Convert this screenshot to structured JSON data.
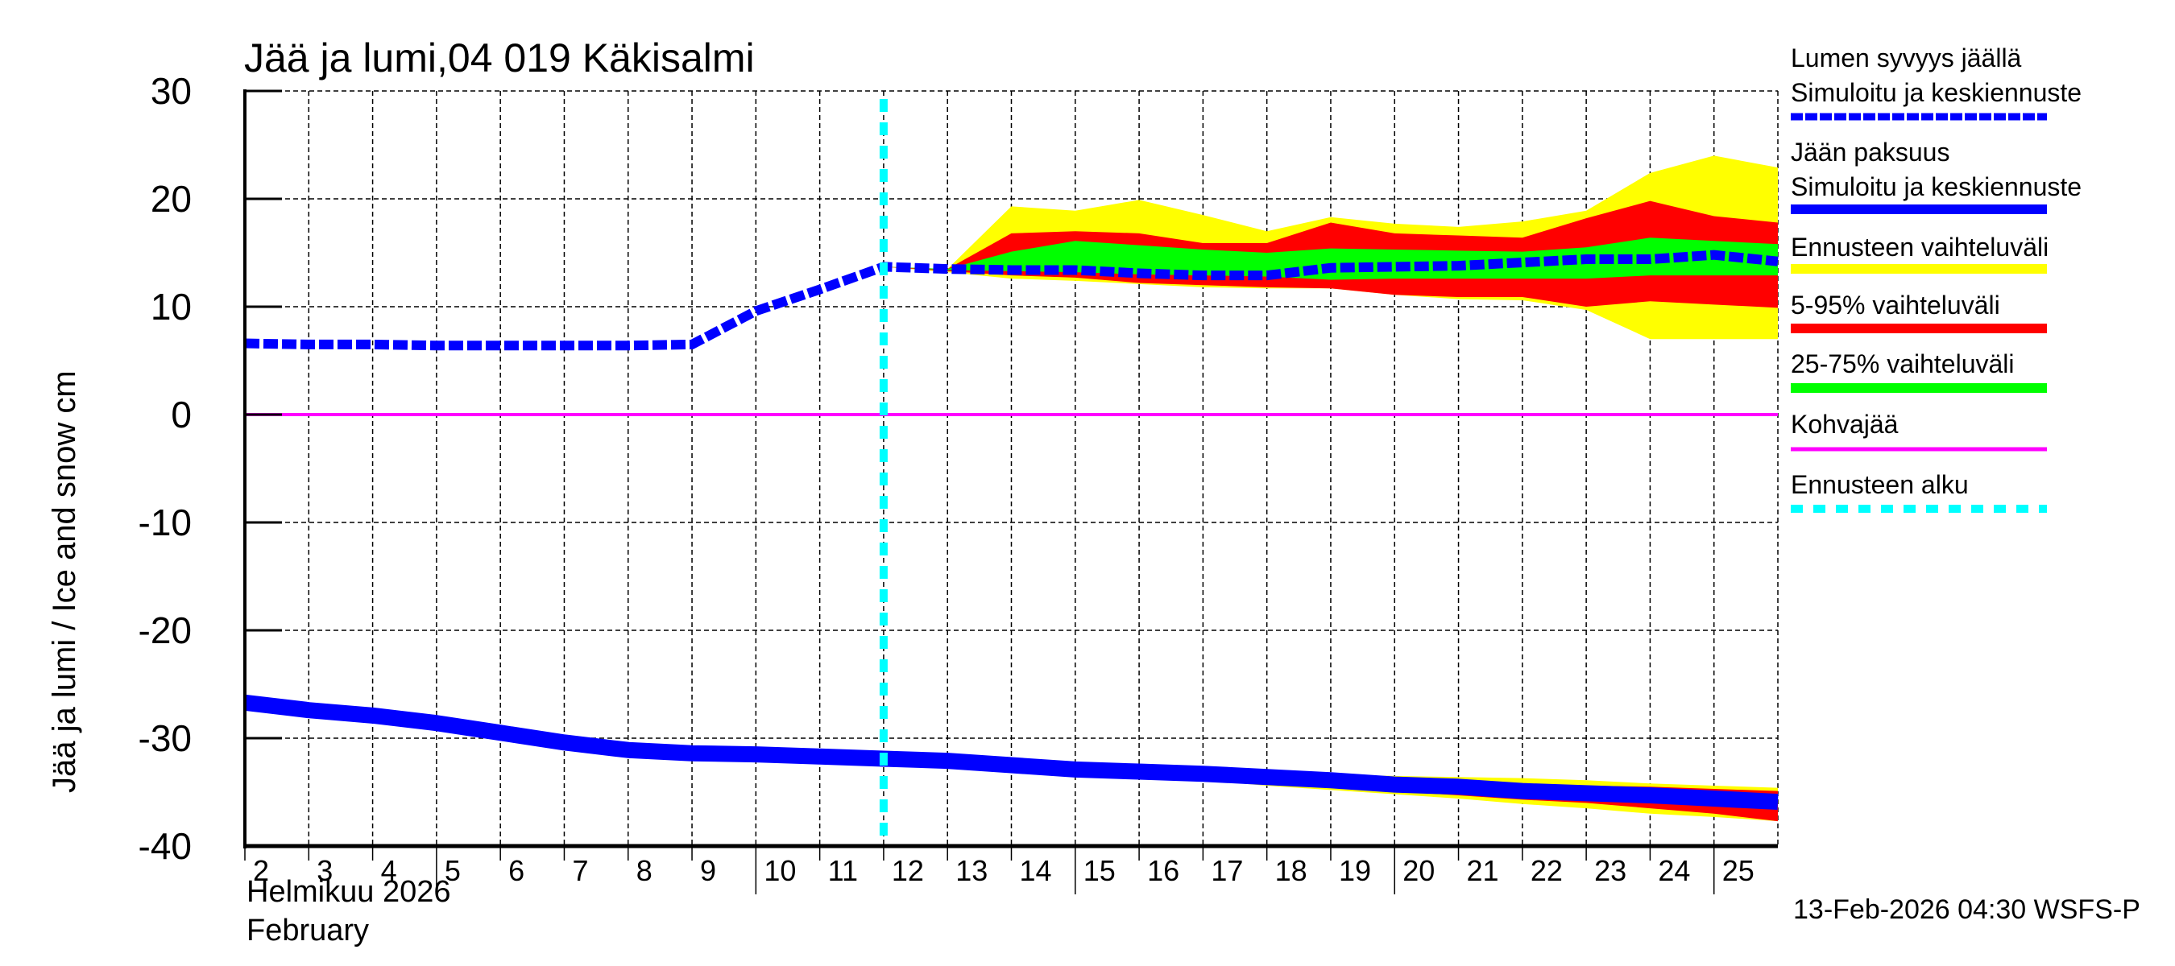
{
  "chart_data": {
    "type": "area",
    "title": "Jää ja lumi,04 019 Käkisalmi",
    "ylabel": "Jää ja lumi / Ice and snow    cm",
    "xlabel_line1": "Helmikuu  2026",
    "xlabel_line2": "February",
    "footer": "13-Feb-2026 04:30 WSFS-P",
    "ylim": [
      -40,
      30
    ],
    "yticks": [
      30,
      20,
      10,
      0,
      -10,
      -20,
      -30,
      -40
    ],
    "xlim": [
      2,
      26
    ],
    "xticks": [
      2,
      3,
      4,
      5,
      6,
      7,
      8,
      9,
      10,
      11,
      12,
      13,
      14,
      15,
      16,
      17,
      18,
      19,
      20,
      21,
      22,
      23,
      24,
      25
    ],
    "major_xticks": [
      5,
      10,
      15,
      20,
      25
    ],
    "grid": true,
    "legend_position": "right",
    "forecast_start_day": 12,
    "colors": {
      "snow": "#0000ff",
      "ice": "#0000ff",
      "range_full": "#ffff00",
      "range_5_95": "#ff0000",
      "range_25_75": "#00ff00",
      "slush": "#ff00ff",
      "forecast_start": "#00ffff"
    },
    "series": [
      {
        "name": "Lumen syvyys jäällä – Simuloitu ja keskiennuste",
        "style": "dashed",
        "x": [
          2,
          3,
          4,
          5,
          6,
          7,
          8,
          9,
          10,
          11,
          12,
          13,
          14,
          15,
          16,
          17,
          18,
          19,
          20,
          21,
          22,
          23,
          24,
          25,
          26
        ],
        "values": [
          6.6,
          6.5,
          6.5,
          6.4,
          6.4,
          6.4,
          6.4,
          6.5,
          9.6,
          11.6,
          13.7,
          13.5,
          13.4,
          13.4,
          13.1,
          12.9,
          12.9,
          13.6,
          13.7,
          13.8,
          14.1,
          14.4,
          14.4,
          14.8,
          14.2
        ]
      },
      {
        "name": "Jään paksuus – Simuloitu ja keskiennuste",
        "style": "solid",
        "x": [
          2,
          3,
          4,
          5,
          6,
          7,
          8,
          9,
          10,
          11,
          12,
          13,
          14,
          15,
          16,
          17,
          18,
          19,
          20,
          21,
          22,
          23,
          24,
          25,
          26
        ],
        "values": [
          -26.7,
          -27.4,
          -27.9,
          -28.6,
          -29.5,
          -30.4,
          -31.1,
          -31.4,
          -31.5,
          -31.7,
          -31.9,
          -32.1,
          -32.5,
          -32.9,
          -33.1,
          -33.3,
          -33.6,
          -33.9,
          -34.3,
          -34.5,
          -34.9,
          -35.1,
          -35.3,
          -35.6,
          -35.9
        ]
      },
      {
        "name": "Kohvajää",
        "style": "solid",
        "x": [
          2,
          26
        ],
        "values": [
          0,
          0
        ]
      }
    ],
    "bands": {
      "x": [
        12,
        13,
        14,
        15,
        16,
        17,
        18,
        19,
        20,
        21,
        22,
        23,
        24,
        25,
        26
      ],
      "snow": {
        "full_upper": [
          13.7,
          13.5,
          19.3,
          18.9,
          19.9,
          18.5,
          17.0,
          18.3,
          17.7,
          17.4,
          17.9,
          18.9,
          22.4,
          24.0,
          22.9
        ],
        "p95": [
          13.7,
          13.5,
          16.8,
          17.0,
          16.8,
          15.9,
          15.9,
          17.8,
          16.8,
          16.6,
          16.4,
          18.2,
          19.8,
          18.4,
          17.8
        ],
        "p75": [
          13.7,
          13.5,
          15.1,
          16.1,
          15.7,
          15.3,
          15.0,
          15.4,
          15.3,
          15.2,
          15.1,
          15.5,
          16.4,
          16.1,
          15.8
        ],
        "p25": [
          13.7,
          13.4,
          13.3,
          13.2,
          13.0,
          12.9,
          12.8,
          12.5,
          12.6,
          12.6,
          12.6,
          12.6,
          12.9,
          12.9,
          12.9
        ],
        "p5": [
          13.7,
          13.3,
          12.9,
          12.7,
          12.2,
          12.0,
          11.8,
          11.7,
          11.1,
          10.9,
          10.9,
          10.0,
          10.5,
          10.2,
          9.9
        ],
        "full_lower": [
          13.7,
          13.2,
          12.6,
          12.4,
          12.1,
          11.8,
          11.7,
          11.7,
          11.1,
          10.7,
          10.6,
          9.7,
          7.0,
          7.0,
          7.0
        ]
      },
      "ice": {
        "full_upper": [
          -31.9,
          -32.0,
          -32.3,
          -32.6,
          -32.8,
          -33.0,
          -33.2,
          -33.4,
          -33.5,
          -33.6,
          -33.7,
          -33.9,
          -34.2,
          -34.4,
          -34.6
        ],
        "p95": [
          -31.9,
          -32.0,
          -32.4,
          -32.8,
          -33.0,
          -33.2,
          -33.4,
          -33.6,
          -33.8,
          -34.0,
          -34.2,
          -34.4,
          -34.5,
          -34.7,
          -34.9
        ],
        "p5": [
          -31.9,
          -32.2,
          -32.7,
          -33.1,
          -33.4,
          -33.7,
          -34.1,
          -34.5,
          -34.9,
          -35.3,
          -35.7,
          -36.0,
          -36.5,
          -37.0,
          -37.7
        ],
        "full_lower": [
          -31.9,
          -32.2,
          -32.8,
          -33.2,
          -33.5,
          -33.9,
          -34.4,
          -34.8,
          -35.2,
          -35.6,
          -36.1,
          -36.5,
          -37.0,
          -37.3,
          -37.7
        ]
      }
    }
  },
  "legend": [
    {
      "line1": "Lumen syvyys jäällä",
      "line2": "Simuloitu ja keskiennuste",
      "color": "#0000ff",
      "style": "dashed"
    },
    {
      "line1": "Jään paksuus",
      "line2": "Simuloitu ja keskiennuste",
      "color": "#0000ff",
      "style": "solid"
    },
    {
      "line1": "Ennusteen vaihteluväli",
      "color": "#ffff00",
      "style": "solid"
    },
    {
      "line1": "5-95% vaihteluväli",
      "color": "#ff0000",
      "style": "solid"
    },
    {
      "line1": "25-75% vaihteluväli",
      "color": "#00ff00",
      "style": "solid"
    },
    {
      "line1": "Kohvajää",
      "color": "#ff00ff",
      "style": "thin"
    },
    {
      "line1": "Ennusteen alku",
      "color": "#00ffff",
      "style": "dotted"
    }
  ]
}
